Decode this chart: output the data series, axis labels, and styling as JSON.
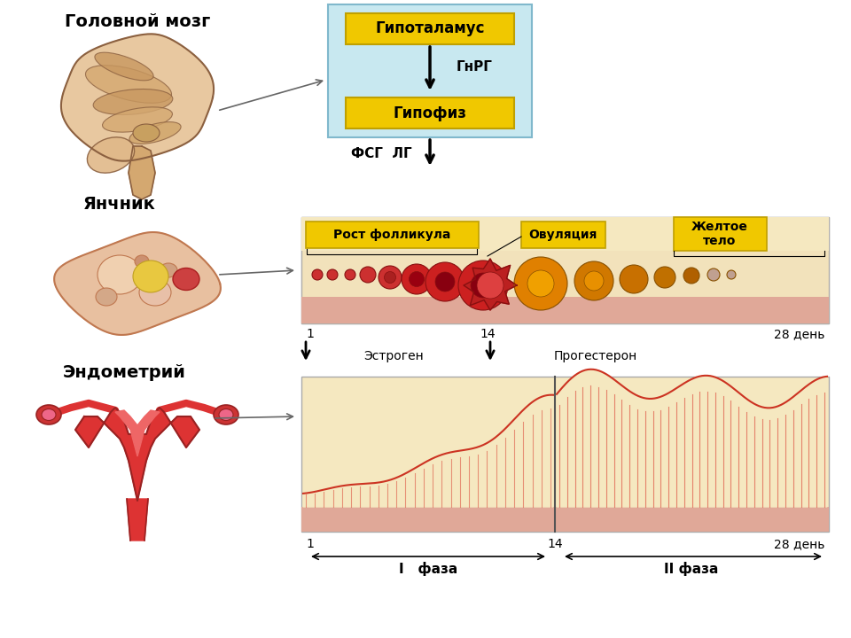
{
  "title_brain": "Головной мозг",
  "title_ovary": "Янчник",
  "title_endo": "Эндометрий",
  "hypothalamus_text": "Гипоталамус",
  "gnrg_text": "ГнРГ",
  "hypophysis_text": "Гипофиз",
  "fsg_lg_text": "ФСГ  ЛГ",
  "follicle_label": "Рост фолликула",
  "ovulation_label": "Овуляция",
  "yellow_body_label": "Желтое\nтело",
  "estrogen_label": "Эстроген",
  "progesterone_label": "Прогестерон",
  "day1_label": "1",
  "day14_label": "14",
  "day28_label": "28 день",
  "phase1_label": "I   фаза",
  "phase2_label": "II фаза",
  "box_bg": "#c8e8f0",
  "yellow_box": "#f0c800",
  "follicle_box_bg": "#f0e8c0",
  "endo_box_bg": "#f0e8c0",
  "pink_bg": "#e8b8a0",
  "pink_dots": "#d07060"
}
